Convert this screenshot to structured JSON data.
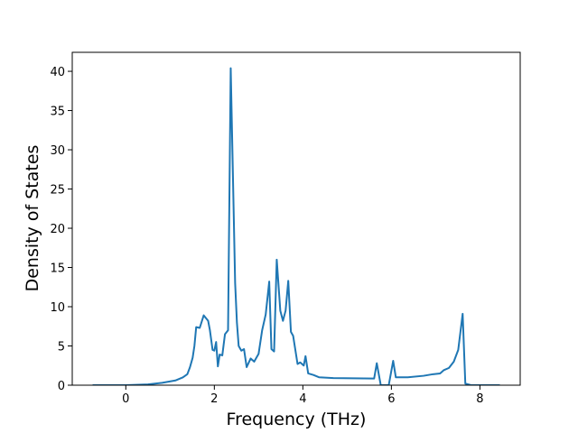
{
  "chart_data": {
    "type": "line",
    "xlabel": "Frequency (THz)",
    "ylabel": "Density of States",
    "color": "#1f77b4",
    "x": [
      -0.75,
      0,
      0.5,
      0.82,
      1.12,
      1.29,
      1.39,
      1.45,
      1.51,
      1.55,
      1.59,
      1.67,
      1.76,
      1.86,
      1.9,
      1.96,
      2.0,
      2.04,
      2.08,
      2.12,
      2.18,
      2.24,
      2.31,
      2.37,
      2.47,
      2.51,
      2.55,
      2.61,
      2.67,
      2.73,
      2.82,
      2.9,
      3.0,
      3.08,
      3.16,
      3.24,
      3.29,
      3.35,
      3.41,
      3.49,
      3.55,
      3.61,
      3.67,
      3.73,
      3.78,
      3.88,
      3.94,
      4.02,
      4.06,
      4.12,
      4.24,
      4.37,
      4.69,
      5.61,
      5.67,
      5.76,
      5.94,
      6.04,
      6.1,
      6.37,
      6.73,
      6.94,
      7.1,
      7.18,
      7.3,
      7.41,
      7.51,
      7.61,
      7.67,
      7.8,
      8.45
    ],
    "values": [
      0,
      0,
      0.1,
      0.3,
      0.6,
      1.0,
      1.4,
      2.3,
      3.5,
      5.0,
      7.4,
      7.3,
      8.9,
      8.2,
      7.0,
      4.5,
      4.4,
      5.5,
      2.4,
      3.9,
      3.8,
      6.5,
      7.0,
      40.4,
      13.0,
      8.0,
      5.0,
      4.4,
      4.6,
      2.3,
      3.4,
      3.0,
      4.0,
      7.0,
      9.0,
      13.2,
      4.6,
      4.3,
      16.0,
      9.5,
      8.2,
      9.5,
      13.3,
      6.8,
      6.3,
      2.7,
      2.9,
      2.5,
      3.7,
      1.5,
      1.3,
      1.0,
      0.9,
      0.85,
      2.8,
      0,
      0,
      3.1,
      1.0,
      1.0,
      1.2,
      1.4,
      1.5,
      1.9,
      2.2,
      3.0,
      4.5,
      9.1,
      0.2,
      0,
      0
    ],
    "xlim": [
      -1.21,
      8.91
    ],
    "ylim": [
      0,
      42.42
    ],
    "xticks": [
      0,
      2,
      4,
      6,
      8
    ],
    "yticks": [
      0,
      5,
      10,
      15,
      20,
      25,
      30,
      35,
      40
    ]
  }
}
